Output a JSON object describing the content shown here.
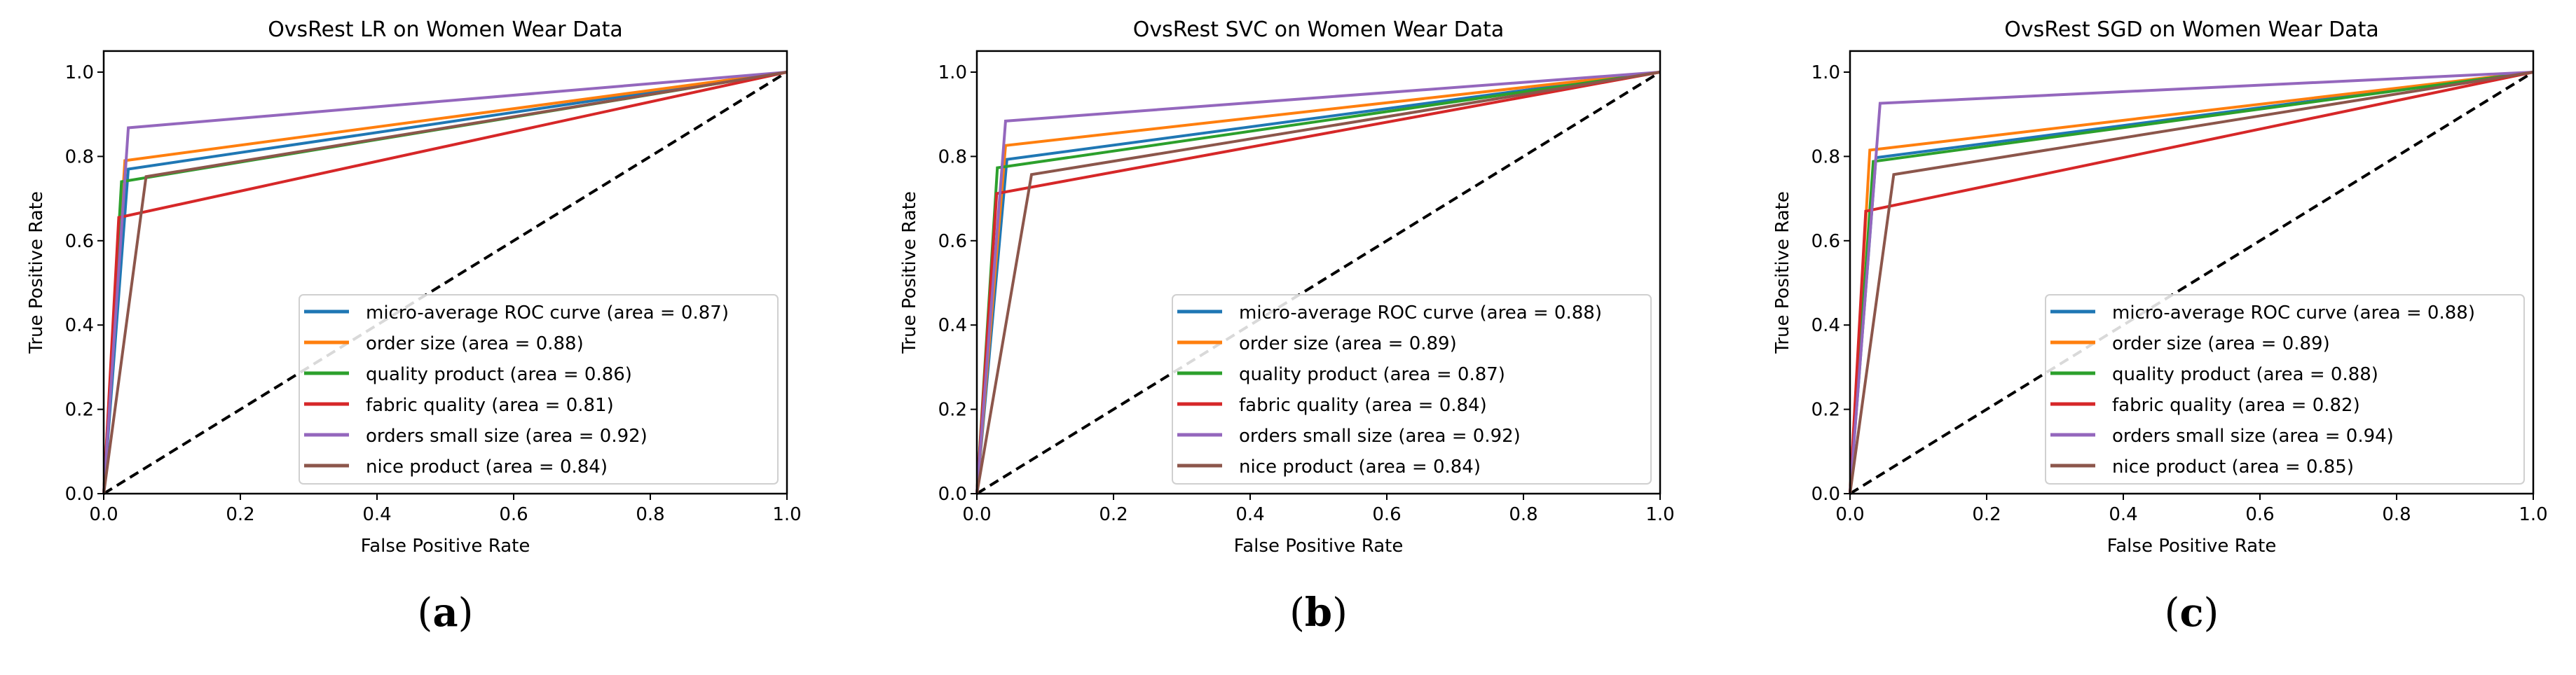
{
  "chart_data": [
    {
      "type": "line",
      "title": "OvsRest LR on Women Wear Data",
      "xlabel": "False Positive Rate",
      "ylabel": "True Positive Rate",
      "xlim": [
        0,
        1.0
      ],
      "ylim": [
        0,
        1.05
      ],
      "xticks": [
        "0.0",
        "0.2",
        "0.4",
        "0.6",
        "0.8",
        "1.0"
      ],
      "yticks": [
        "0.0",
        "0.2",
        "0.4",
        "0.6",
        "0.8",
        "1.0"
      ],
      "legend_placement": "lower-right",
      "caption": "(a)",
      "series": [
        {
          "name": "micro-average ROC curve (area = 0.87)",
          "color": "#1f77b4",
          "x": [
            0,
            0.036,
            1
          ],
          "y": [
            0,
            0.77,
            1
          ]
        },
        {
          "name": "order size (area = 0.88)",
          "color": "#ff7f0e",
          "x": [
            0,
            0.031,
            1
          ],
          "y": [
            0,
            0.79,
            1
          ]
        },
        {
          "name": "quality product (area = 0.86)",
          "color": "#2ca02c",
          "x": [
            0,
            0.026,
            1
          ],
          "y": [
            0,
            0.74,
            1
          ]
        },
        {
          "name": "fabric quality (area = 0.81)",
          "color": "#d62728",
          "x": [
            0,
            0.022,
            1
          ],
          "y": [
            0,
            0.655,
            1
          ]
        },
        {
          "name": "orders small size (area = 0.92)",
          "color": "#9467bd",
          "x": [
            0,
            0.036,
            1
          ],
          "y": [
            0,
            0.868,
            1
          ]
        },
        {
          "name": "nice product (area = 0.84)",
          "color": "#8c564b",
          "x": [
            0,
            0.062,
            1
          ],
          "y": [
            0,
            0.752,
            1
          ]
        }
      ]
    },
    {
      "type": "line",
      "title": "OvsRest SVC on Women Wear Data",
      "xlabel": "False Positive Rate",
      "ylabel": "True Positive Rate",
      "xlim": [
        0,
        1.0
      ],
      "ylim": [
        0,
        1.05
      ],
      "xticks": [
        "0.0",
        "0.2",
        "0.4",
        "0.6",
        "0.8",
        "1.0"
      ],
      "yticks": [
        "0.0",
        "0.2",
        "0.4",
        "0.6",
        "0.8",
        "1.0"
      ],
      "legend_placement": "lower-right",
      "caption": "(b)",
      "series": [
        {
          "name": "micro-average ROC curve (area = 0.88)",
          "color": "#1f77b4",
          "x": [
            0,
            0.044,
            1
          ],
          "y": [
            0,
            0.793,
            1
          ]
        },
        {
          "name": "order size (area = 0.89)",
          "color": "#ff7f0e",
          "x": [
            0,
            0.042,
            1
          ],
          "y": [
            0,
            0.826,
            1
          ]
        },
        {
          "name": "quality product (area = 0.87)",
          "color": "#2ca02c",
          "x": [
            0,
            0.03,
            1
          ],
          "y": [
            0,
            0.773,
            1
          ]
        },
        {
          "name": "fabric quality (area = 0.84)",
          "color": "#d62728",
          "x": [
            0,
            0.029,
            1
          ],
          "y": [
            0,
            0.712,
            1
          ]
        },
        {
          "name": "orders small size (area = 0.92)",
          "color": "#9467bd",
          "x": [
            0,
            0.042,
            1
          ],
          "y": [
            0,
            0.884,
            1
          ]
        },
        {
          "name": "nice product (area = 0.84)",
          "color": "#8c564b",
          "x": [
            0,
            0.08,
            1
          ],
          "y": [
            0,
            0.757,
            1
          ]
        }
      ]
    },
    {
      "type": "line",
      "title": "OvsRest SGD on Women Wear Data",
      "xlabel": "False Positive Rate",
      "ylabel": "True Positive Rate",
      "xlim": [
        0,
        1.0
      ],
      "ylim": [
        0,
        1.05
      ],
      "xticks": [
        "0.0",
        "0.2",
        "0.4",
        "0.6",
        "0.8",
        "1.0"
      ],
      "yticks": [
        "0.0",
        "0.2",
        "0.4",
        "0.6",
        "0.8",
        "1.0"
      ],
      "legend_placement": "lower-right",
      "caption": "(c)",
      "series": [
        {
          "name": "micro-average ROC curve (area = 0.88)",
          "color": "#1f77b4",
          "x": [
            0,
            0.038,
            1
          ],
          "y": [
            0,
            0.797,
            1
          ]
        },
        {
          "name": "order size (area = 0.89)",
          "color": "#ff7f0e",
          "x": [
            0,
            0.029,
            1
          ],
          "y": [
            0,
            0.815,
            1
          ]
        },
        {
          "name": "quality product (area = 0.88)",
          "color": "#2ca02c",
          "x": [
            0,
            0.034,
            1
          ],
          "y": [
            0,
            0.788,
            1
          ]
        },
        {
          "name": "fabric quality (area = 0.82)",
          "color": "#d62728",
          "x": [
            0,
            0.023,
            1
          ],
          "y": [
            0,
            0.67,
            1
          ]
        },
        {
          "name": "orders small size (area = 0.94)",
          "color": "#9467bd",
          "x": [
            0,
            0.044,
            1
          ],
          "y": [
            0,
            0.926,
            1
          ]
        },
        {
          "name": "nice product (area = 0.85)",
          "color": "#8c564b",
          "x": [
            0,
            0.064,
            1
          ],
          "y": [
            0,
            0.757,
            1
          ]
        }
      ]
    }
  ]
}
